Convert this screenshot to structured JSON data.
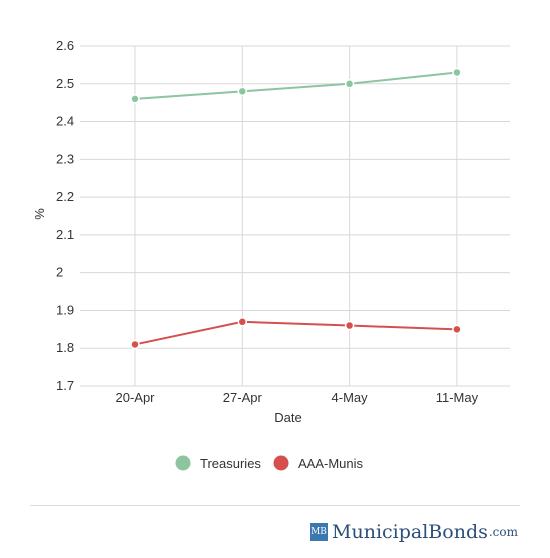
{
  "chart_data": {
    "type": "line",
    "categories": [
      "20-Apr",
      "27-Apr",
      "4-May",
      "11-May"
    ],
    "series": [
      {
        "name": "Treasuries",
        "values": [
          2.46,
          2.48,
          2.5,
          2.53
        ],
        "color": "#8cc5a0"
      },
      {
        "name": "AAA-Munis",
        "values": [
          1.81,
          1.87,
          1.86,
          1.85
        ],
        "color": "#d64f4f"
      }
    ],
    "xlabel": "Date",
    "ylabel": "%",
    "ylim": [
      1.7,
      2.6
    ],
    "yticks": [
      "1.7",
      "1.8",
      "1.9",
      "2",
      "2.1",
      "2.2",
      "2.3",
      "2.4",
      "2.5",
      "2.6"
    ],
    "grid": true,
    "legend_position": "bottom"
  },
  "logo": {
    "badge": "MB",
    "name": "MunicipalBonds",
    "tld": ".com"
  }
}
